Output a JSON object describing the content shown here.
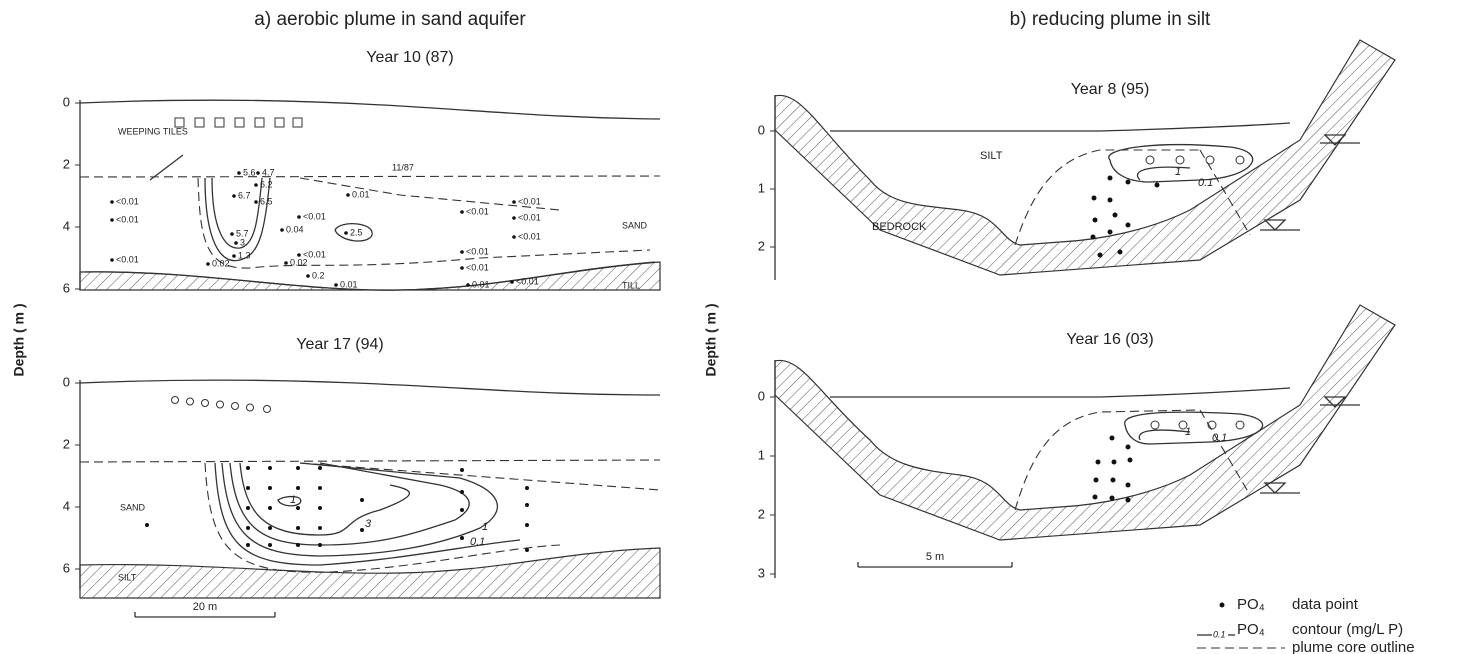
{
  "panel_a": {
    "title": "a) aerobic plume in sand aquifer",
    "depth_label": "Depth ( m )",
    "top": {
      "title": "Year 10 (87)",
      "ticks": [
        0,
        2,
        4,
        6
      ],
      "labels": {
        "tiles": "WEEPING TILES",
        "date": "11/87",
        "sand": "SAND",
        "till": "TILL"
      },
      "point_labels": [
        "5.6",
        "4.7",
        "6.2",
        "6.7",
        "6.5",
        "5.7",
        "0.04",
        "<0.01",
        "2.5",
        "<0.01",
        "0.02",
        "1.3",
        "0.02",
        "0.2",
        "0.01",
        "0.01",
        "<0.01",
        "<0.01",
        "<0.01",
        "<0.01",
        "<0.01",
        "<0.01",
        "<0.01",
        "<0.01",
        "<0.01",
        "<0.01",
        "0.01",
        "3"
      ]
    },
    "bottom": {
      "title": "Year 17 (94)",
      "ticks": [
        0,
        2,
        4,
        6
      ],
      "labels": {
        "sand": "SAND",
        "silt": "SILT",
        "scale": "20 m"
      },
      "contour_labels": [
        "1",
        "3",
        "1",
        "0.1"
      ]
    }
  },
  "panel_b": {
    "title": "b) reducing plume in silt",
    "depth_label": "Depth ( m )",
    "top": {
      "title": "Year 8 (95)",
      "ticks": [
        0,
        1,
        2
      ],
      "labels": {
        "silt": "SILT",
        "bedrock": "BEDROCK"
      },
      "contour_labels": [
        "1",
        "0.1"
      ]
    },
    "bottom": {
      "title": "Year 16 (03)",
      "ticks": [
        0,
        1,
        2,
        3
      ],
      "labels": {
        "scale": "5 m"
      },
      "contour_labels": [
        "1",
        "0.1"
      ]
    }
  },
  "legend": {
    "species": "PO₄",
    "point": "data point",
    "contour_value": "0.1",
    "contour": "contour (mg/L P)",
    "outline": "plume core outline"
  }
}
